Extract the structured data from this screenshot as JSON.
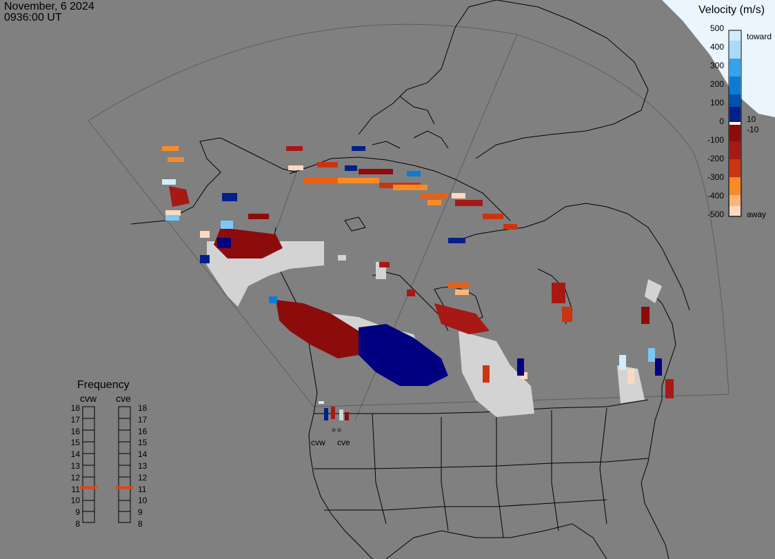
{
  "header": {
    "date": "November, 6 2024",
    "time": "0936:00 UT"
  },
  "colorbar": {
    "title": "Velocity (m/s)",
    "ticks": [
      "500",
      "400",
      "300",
      "200",
      "100",
      "0",
      "-100",
      "-200",
      "-300",
      "-400",
      "-500"
    ],
    "inner_ticks": [
      "10",
      "-10"
    ],
    "toward_label": "toward",
    "away_label": "away",
    "colors": [
      "#fcd9c0",
      "#fdb57a",
      "#f98b27",
      "#ec5f12",
      "#cc3410",
      "#a81814",
      "#8c0c0c",
      "#ffffff",
      "#000060",
      "#00208a",
      "#0050b0",
      "#0a7cd6",
      "#33a3ef",
      "#7cc8f6",
      "#d2ecfc"
    ]
  },
  "frequency": {
    "title": "Frequency",
    "radars": [
      "cvw",
      "cve"
    ],
    "scale": [
      "18",
      "17",
      "16",
      "15",
      "14",
      "13",
      "12",
      "11",
      "10",
      "9",
      "8"
    ],
    "current_mhz": [
      11,
      11
    ],
    "marker_color": "#e0441a"
  },
  "sites": {
    "west_label": "cvw",
    "east_label": "cve"
  },
  "palette": {
    "background": "#808080",
    "groundscatter": "#d3d3d3",
    "coast": "#000000",
    "grid": "#5a5a5a",
    "sun": "#e8f4fe"
  }
}
